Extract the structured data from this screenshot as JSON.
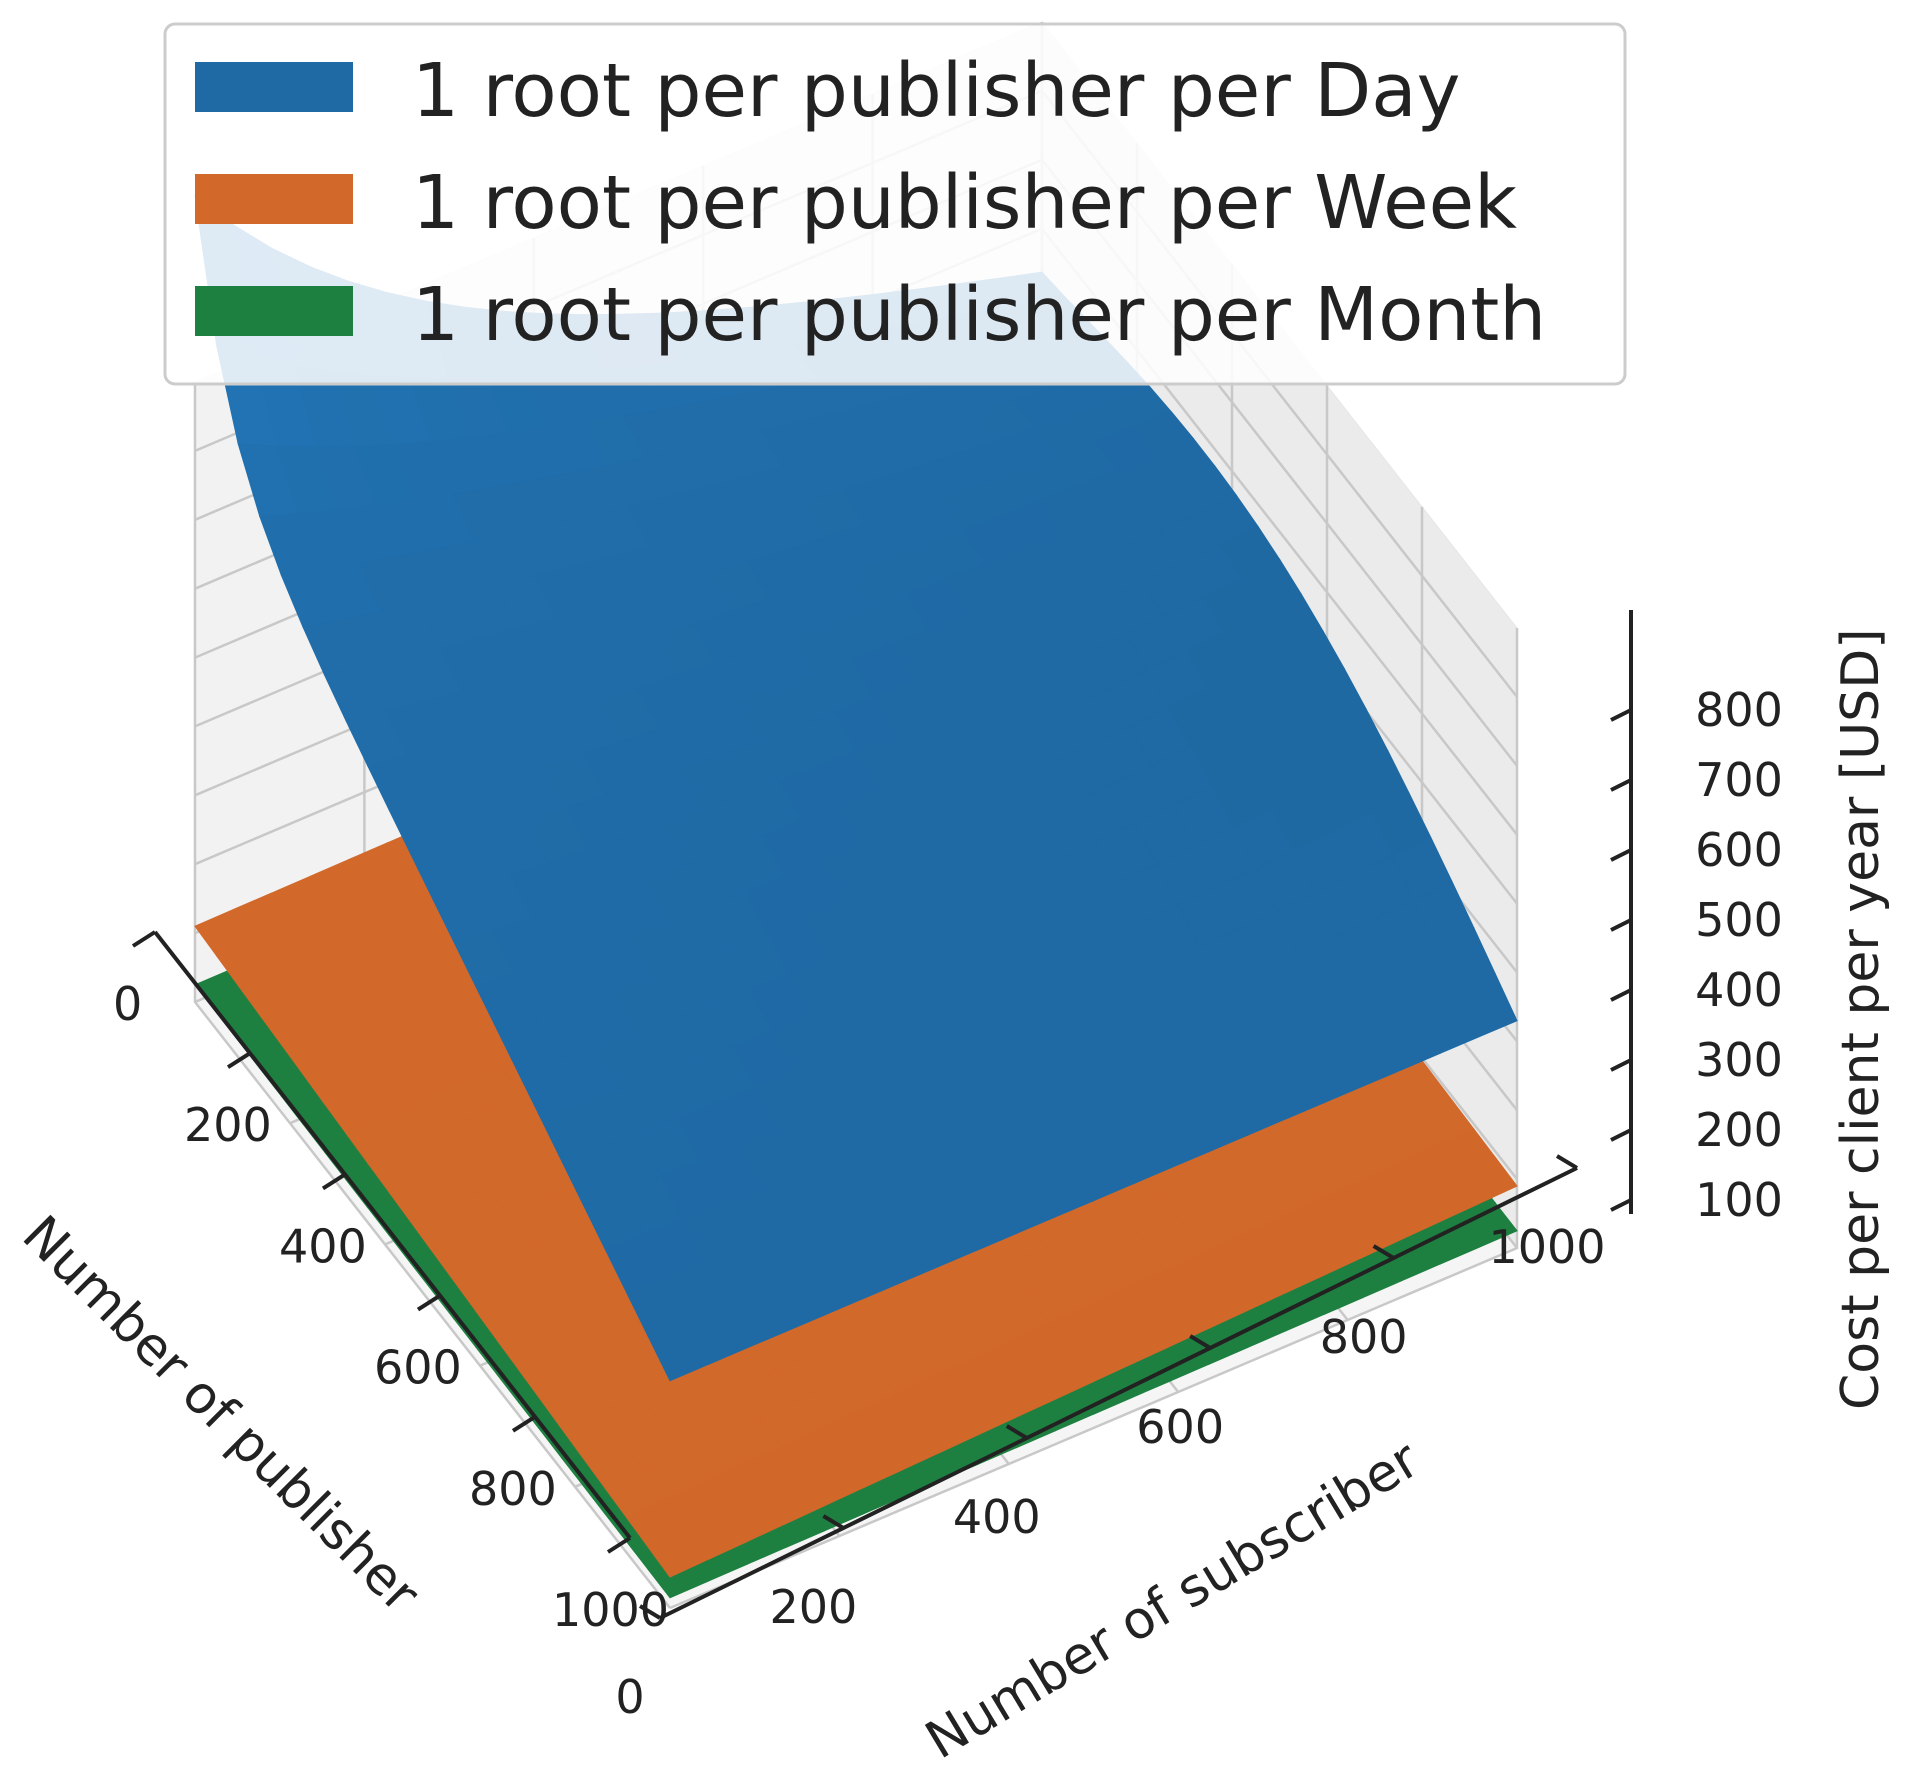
{
  "chart_data": {
    "type": "surface3d",
    "title": "",
    "legend": {
      "placement": "top-center",
      "entries": [
        {
          "label": "1 root per publisher per Day",
          "color": "#1f6aa5"
        },
        {
          "label": "1 root per publisher per Week",
          "color": "#d2692a"
        },
        {
          "label": "1 root per publisher per Month",
          "color": "#1e8040"
        }
      ]
    },
    "x_axis": {
      "label": "Number of publisher",
      "range": [
        0,
        1000
      ],
      "ticks": [
        "0",
        "200",
        "400",
        "600",
        "800",
        "1000"
      ]
    },
    "y_axis": {
      "label": "Number of subscriber",
      "range": [
        0,
        1000
      ],
      "ticks": [
        "0",
        "200",
        "400",
        "600",
        "800",
        "1000"
      ]
    },
    "z_axis": {
      "label": "Cost per client per year [USD]",
      "range": [
        0,
        900
      ],
      "ticks": [
        "100",
        "200",
        "300",
        "400",
        "500",
        "600",
        "700",
        "800"
      ]
    },
    "grid": true,
    "series": [
      {
        "name": "1 root per publisher per Day",
        "color": "#1f6aa5",
        "corner_values": {
          "p0_s0": 850,
          "p0_s1000": 530,
          "p1000_s0": 330,
          "p1000_s1000": 330
        },
        "ridge_peak": {
          "subscribers": 1000,
          "publishers_peak": 500,
          "value": 560
        }
      },
      {
        "name": "1 root per publisher per Week",
        "color": "#d2692a",
        "corner_values": {
          "p0_s0": 110,
          "p0_s1000": 120,
          "p1000_s0": 45,
          "p1000_s1000": 90
        }
      },
      {
        "name": "1 root per publisher per Month",
        "color": "#1e8040",
        "corner_values": {
          "p0_s0": 25,
          "p0_s1000": 30,
          "p1000_s0": 15,
          "p1000_s1000": 25
        }
      }
    ]
  }
}
